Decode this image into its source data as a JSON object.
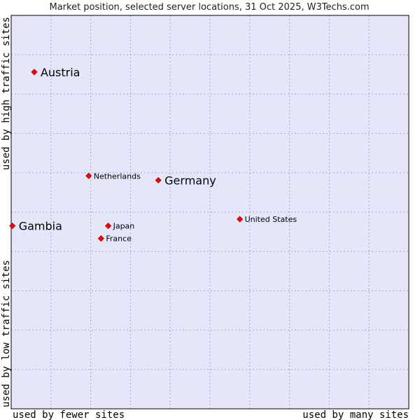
{
  "chart_data": {
    "type": "scatter",
    "title": "Market position, selected server locations, 31 Oct 2025, W3Techs.com",
    "x_label_left": "used by fewer sites",
    "x_label_right": "used by many sites",
    "y_label_bottom": "used by low traffic sites",
    "y_label_top": "used by high traffic sites",
    "xlim": [
      0,
      100
    ],
    "ylim": [
      0,
      100
    ],
    "grid": true,
    "colors": {
      "plot_bg": "#e6e6fa",
      "grid": "#a8a8c8",
      "border": "#000000",
      "marker": "#ff0000",
      "marker_edge": "#aa0000"
    },
    "points": [
      {
        "name": "Austria",
        "x": 5.8,
        "y": 85.6,
        "highlight": true
      },
      {
        "name": "Germany",
        "x": 37.0,
        "y": 58.1,
        "highlight": true
      },
      {
        "name": "Gambia",
        "x": 0.3,
        "y": 46.5,
        "highlight": true
      },
      {
        "name": "Netherlands",
        "x": 19.5,
        "y": 59.2,
        "highlight": false
      },
      {
        "name": "United States",
        "x": 57.5,
        "y": 48.2,
        "highlight": false
      },
      {
        "name": "Japan",
        "x": 24.4,
        "y": 46.5,
        "highlight": false
      },
      {
        "name": "France",
        "x": 22.6,
        "y": 43.3,
        "highlight": false
      }
    ]
  }
}
